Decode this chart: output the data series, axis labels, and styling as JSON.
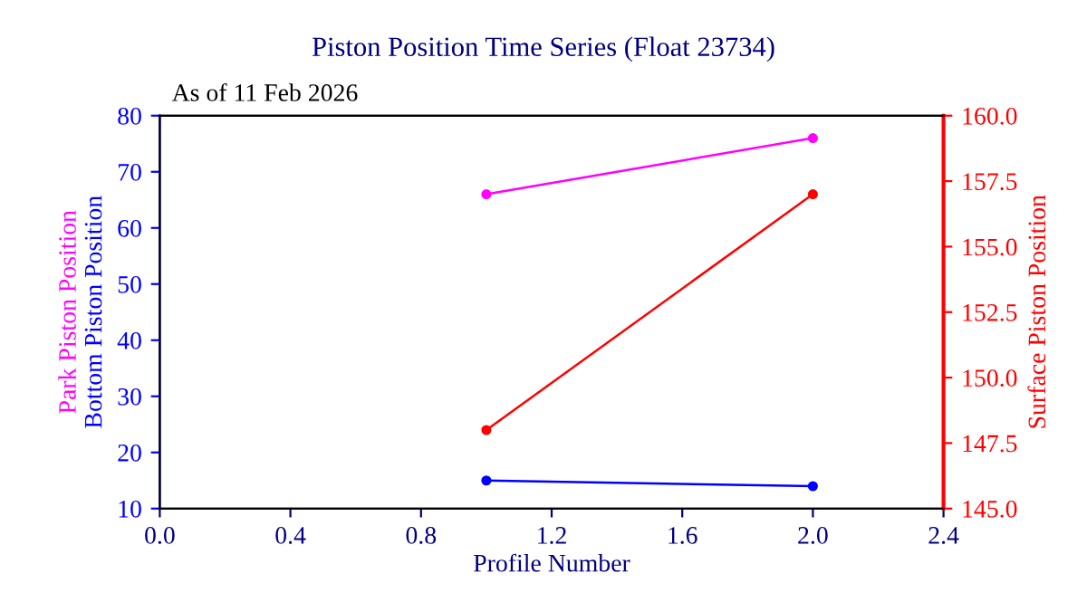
{
  "chart_data": {
    "type": "line",
    "title": "Piston Position Time Series (Float 23734)",
    "subtitle": "As of 11 Feb 2026",
    "xlabel": "Profile Number",
    "ylabel": "Bottom Piston Position",
    "y2label": "Surface Piston Position",
    "x": [
      1,
      2
    ],
    "series": [
      {
        "name": "Park Piston Position",
        "color": "#ff00ff",
        "values": [
          66,
          76
        ]
      },
      {
        "color": "#0000ff",
        "values": [
          15,
          14
        ]
      },
      {
        "color": "#ff0000",
        "values": [
          148.0,
          157.0
        ],
        "axis": "y2"
      }
    ],
    "xlim": [
      0.0,
      2.4
    ],
    "xticks": [
      {
        "value": 0,
        "label": "0.0"
      },
      0.4,
      0.8,
      1.2,
      1.6,
      {
        "value": 2.0,
        "label": "2.0"
      },
      2.4
    ],
    "ylim": [
      10,
      80
    ],
    "yticks": [
      10,
      20,
      30,
      40,
      50,
      60,
      70,
      80
    ],
    "y2lim": [
      145,
      160
    ],
    "y2ticks": [
      {
        "value": 145,
        "label": "145.0"
      },
      147.5,
      {
        "value": 150,
        "label": "150.0"
      },
      152.5,
      {
        "value": 155,
        "label": "155.0"
      },
      157.5,
      {
        "value": 160,
        "label": "160.0"
      }
    ],
    "marker": "circle",
    "line_style": "solid",
    "grid": false,
    "legend": false
  }
}
